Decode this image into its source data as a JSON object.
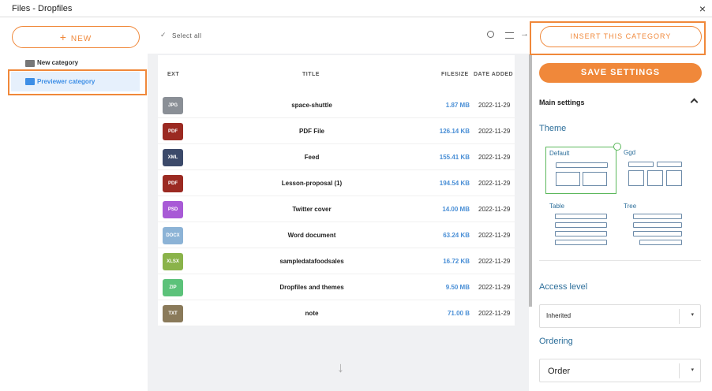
{
  "window": {
    "title": "Files - Dropfiles"
  },
  "sidebar": {
    "new_button": "NEW",
    "categories": [
      "New category",
      "Previewer category"
    ]
  },
  "toolbar": {
    "select_all": "Select all"
  },
  "table": {
    "columns": [
      "EXT",
      "TITLE",
      "FILESIZE",
      "DATE ADDED"
    ],
    "rows": [
      {
        "ext": "JPG",
        "color": "#8a8f96",
        "title": "space-shuttle",
        "size": "1.87 MB",
        "date": "2022-11-29"
      },
      {
        "ext": "PDF",
        "color": "#9b2a22",
        "title": "PDF File",
        "size": "126.14 KB",
        "date": "2022-11-29"
      },
      {
        "ext": "XML",
        "color": "#3c4a6a",
        "title": "Feed",
        "size": "155.41 KB",
        "date": "2022-11-29"
      },
      {
        "ext": "PDF",
        "color": "#9b2a22",
        "title": "Lesson-proposal (1)",
        "size": "194.54 KB",
        "date": "2022-11-29"
      },
      {
        "ext": "PSD",
        "color": "#a85ad6",
        "title": "Twitter cover",
        "size": "14.00 MB",
        "date": "2022-11-29"
      },
      {
        "ext": "DOCX",
        "color": "#8cb3d6",
        "title": "Word document",
        "size": "63.24 KB",
        "date": "2022-11-29"
      },
      {
        "ext": "XLSX",
        "color": "#8ab34a",
        "title": "sampledatafoodsales",
        "size": "16.72 KB",
        "date": "2022-11-29"
      },
      {
        "ext": "ZIP",
        "color": "#5cc27a",
        "title": "Dropfiles and themes",
        "size": "9.50 MB",
        "date": "2022-11-29"
      },
      {
        "ext": "TXT",
        "color": "#8a7a5a",
        "title": "note",
        "size": "71.00 B",
        "date": "2022-11-29"
      }
    ]
  },
  "panel": {
    "insert_button": "INSERT THIS CATEGORY",
    "save_button": "SAVE SETTINGS",
    "main_settings": "Main settings",
    "theme_label": "Theme",
    "themes": [
      "Default",
      "Ggd",
      "Table",
      "Tree"
    ],
    "access_level_label": "Access level",
    "access_level_value": "Inherited",
    "ordering_label": "Ordering",
    "ordering_value": "Order"
  }
}
